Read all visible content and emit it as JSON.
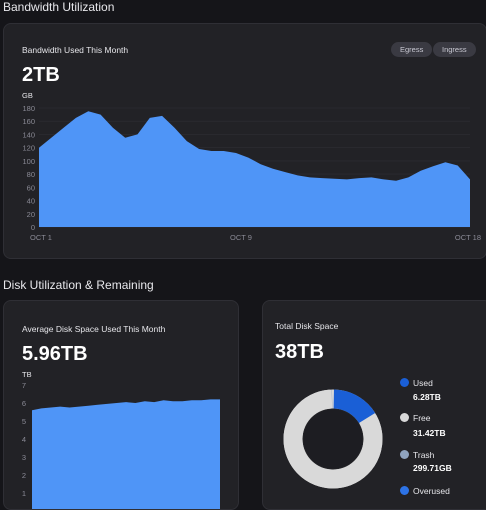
{
  "sections": {
    "bandwidth": "Bandwidth Utilization",
    "disk": "Disk Utilization & Remaining"
  },
  "bandwidth_card": {
    "label": "Bandwidth Used This Month",
    "value": "2TB",
    "unit": "GB",
    "buttons": [
      "Egress",
      "Ingress"
    ]
  },
  "disk_card": {
    "label": "Average Disk Space Used This Month",
    "value": "5.96TB",
    "unit": "TB"
  },
  "total_card": {
    "label": "Total Disk Space",
    "value": "38TB",
    "legend": [
      {
        "name": "Used",
        "value": "6.28TB",
        "color": "#1a5fd6"
      },
      {
        "name": "Free",
        "value": "31.42TB",
        "color": "#d9d9d9"
      },
      {
        "name": "Trash",
        "value": "299.71GB",
        "color": "#8fa3bf"
      },
      {
        "name": "Overused",
        "value": "",
        "color": "#2d73e6"
      }
    ]
  },
  "chart_data": [
    {
      "type": "area",
      "title": "Bandwidth Used This Month",
      "ylabel": "GB",
      "ylim": [
        0,
        180
      ],
      "yticks": [
        "0",
        "20",
        "40",
        "60",
        "80",
        "100",
        "120",
        "140",
        "160",
        "180"
      ],
      "xticks": [
        "OCT 1",
        "OCT 9",
        "OCT 18"
      ],
      "color": "#4f95f7",
      "x": [
        0,
        0.5,
        1,
        1.5,
        2,
        2.5,
        3,
        3.5,
        4,
        4.5,
        5,
        5.5,
        6,
        6.5,
        7,
        7.5,
        8,
        8.5,
        9,
        9.5,
        10,
        10.5,
        11,
        11.5,
        12,
        12.5,
        13,
        13.5,
        14,
        14.5,
        15,
        15.5,
        16,
        16.5,
        17,
        17.5
      ],
      "values": [
        120,
        135,
        150,
        165,
        175,
        170,
        150,
        135,
        140,
        165,
        168,
        150,
        130,
        118,
        115,
        115,
        112,
        105,
        95,
        88,
        83,
        78,
        75,
        74,
        73,
        72,
        74,
        75,
        72,
        70,
        75,
        85,
        92,
        98,
        93,
        72
      ]
    },
    {
      "type": "area",
      "title": "Average Disk Space Used This Month",
      "ylabel": "TB",
      "ylim": [
        0,
        7
      ],
      "yticks": [
        "1",
        "2",
        "3",
        "4",
        "5",
        "6",
        "7"
      ],
      "color": "#4f95f7",
      "x": [
        0,
        1,
        2,
        3,
        4,
        5,
        6,
        7,
        8,
        9,
        10,
        11,
        12,
        13,
        14,
        15,
        16,
        17,
        18,
        19,
        20
      ],
      "values": [
        5.6,
        5.7,
        5.75,
        5.8,
        5.75,
        5.8,
        5.85,
        5.9,
        5.95,
        6.0,
        6.05,
        6.0,
        6.1,
        6.05,
        6.15,
        6.1,
        6.1,
        6.15,
        6.15,
        6.2,
        6.2
      ]
    },
    {
      "type": "pie",
      "title": "Total Disk Space",
      "categories": [
        "Used",
        "Free",
        "Trash",
        "Overused"
      ],
      "values": [
        6.28,
        31.42,
        0.29,
        0
      ]
    }
  ]
}
